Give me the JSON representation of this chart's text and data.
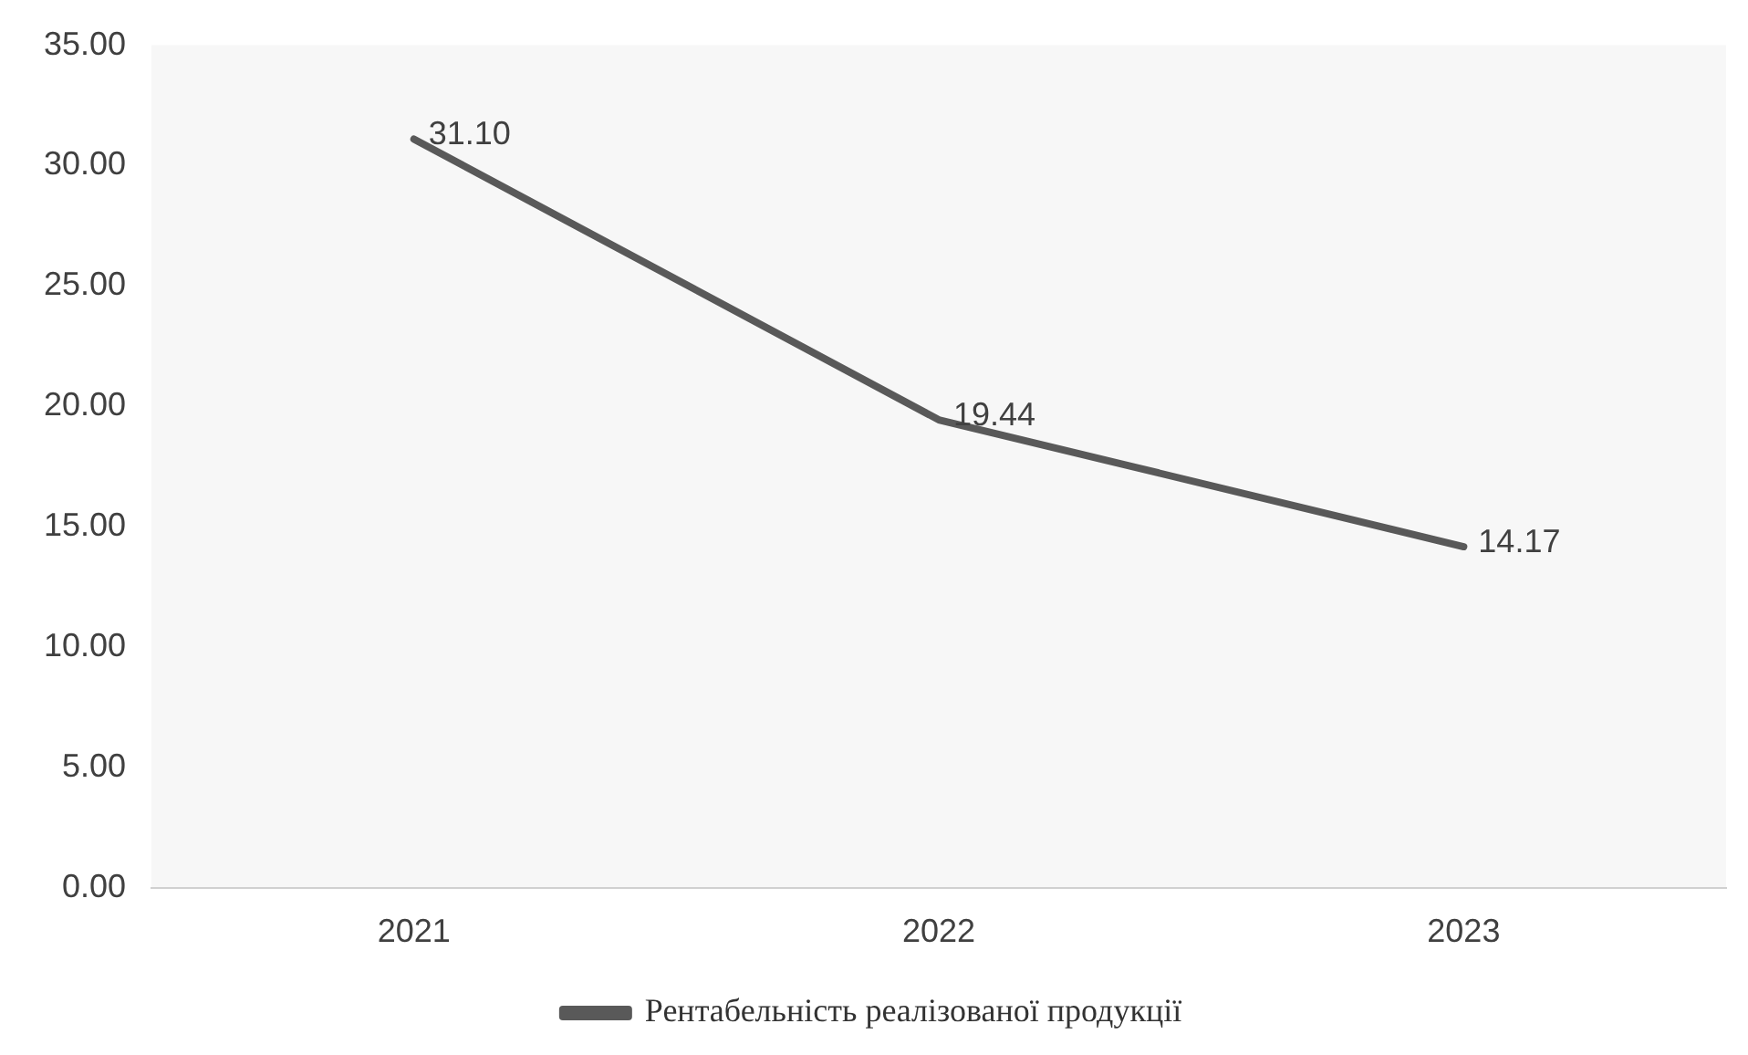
{
  "chart_data": {
    "type": "line",
    "categories": [
      "2021",
      "2022",
      "2023"
    ],
    "series": [
      {
        "name": "Рентабельність реалізованої продукції",
        "color": "#595959",
        "values": [
          31.1,
          19.44,
          14.17
        ],
        "value_labels": [
          "31.10",
          "19.44",
          "14.17"
        ]
      }
    ],
    "ylim": [
      0,
      35
    ],
    "yticks": [
      {
        "value": 0,
        "label": "0.00"
      },
      {
        "value": 5,
        "label": "5.00"
      },
      {
        "value": 10,
        "label": "10.00"
      },
      {
        "value": 15,
        "label": "15.00"
      },
      {
        "value": 20,
        "label": "20.00"
      },
      {
        "value": 25,
        "label": "25.00"
      },
      {
        "value": 30,
        "label": "30.00"
      },
      {
        "value": 35,
        "label": "35.00"
      }
    ],
    "grid": false,
    "legend": "bottom",
    "marker": "none",
    "line_style": "solid"
  }
}
